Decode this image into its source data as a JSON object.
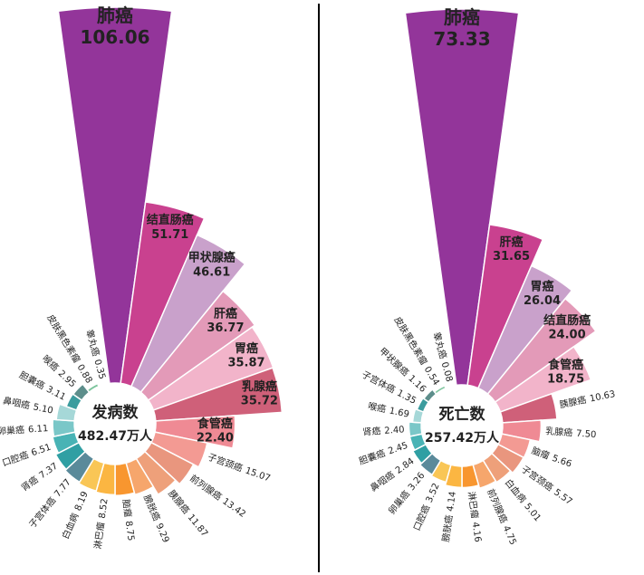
{
  "chart_data": [
    {
      "type": "rose",
      "center_label": "发病数",
      "center_value": "482.47万人",
      "categories": [
        "肺癌",
        "结直肠癌",
        "甲状腺癌",
        "肝癌",
        "胃癌",
        "乳腺癌",
        "食管癌",
        "子宫颈癌",
        "前列腺癌",
        "胰腺癌",
        "膀胱癌",
        "脑瘤",
        "淋巴瘤",
        "白血病",
        "子宫体癌",
        "肾癌",
        "口腔癌",
        "卵巢癌",
        "鼻咽癌",
        "胆囊癌",
        "喉癌",
        "皮肤黑色素瘤",
        "睾丸癌"
      ],
      "values": [
        106.06,
        51.71,
        46.61,
        36.77,
        35.87,
        35.72,
        22.4,
        15.07,
        13.42,
        11.87,
        9.29,
        8.75,
        8.52,
        8.19,
        7.77,
        7.37,
        6.51,
        6.11,
        5.1,
        3.11,
        2.95,
        0.88,
        0.35
      ],
      "value_labels": [
        "106.06",
        "51.71",
        "46.61",
        "36.77",
        "35.87",
        "35.72",
        "22.40",
        "15.07",
        "13.42",
        "11.87",
        "9.29",
        "8.75",
        "8.52",
        "8.19",
        "7.77",
        "7.37",
        "6.51",
        "6.11",
        "5.10",
        "3.11",
        "2.95",
        "0.88",
        "0.35"
      ],
      "colors": [
        "#93359a",
        "#c9418f",
        "#c9a1cb",
        "#e39ab8",
        "#f2b4ca",
        "#cf6079",
        "#ef8a94",
        "#f39a93",
        "#e9967e",
        "#eea07a",
        "#f6a66c",
        "#f8962f",
        "#fbb642",
        "#f9c656",
        "#5a8a9a",
        "#2f9fa3",
        "#48b3b5",
        "#7ac7c8",
        "#a6d8d8",
        "#3b9c9e",
        "#5d8e8b",
        "#7cc49c",
        "#49c06a"
      ]
    },
    {
      "type": "rose",
      "center_label": "死亡数",
      "center_value": "257.42万人",
      "categories": [
        "肺癌",
        "肝癌",
        "胃癌",
        "结直肠癌",
        "食管癌",
        "胰腺癌",
        "乳腺癌",
        "脑瘤",
        "子宫颈癌",
        "白血病",
        "前列腺癌",
        "淋巴瘤",
        "膀胱癌",
        "口腔癌",
        "卵巢癌",
        "鼻咽癌",
        "胆囊癌",
        "肾癌",
        "喉癌",
        "子宫体癌",
        "甲状腺癌",
        "皮肤黑色素瘤",
        "睾丸癌"
      ],
      "values": [
        73.33,
        31.65,
        26.04,
        24.0,
        18.75,
        10.63,
        7.5,
        5.66,
        5.57,
        5.01,
        4.75,
        4.16,
        4.14,
        3.52,
        3.26,
        2.84,
        2.45,
        2.4,
        1.69,
        1.35,
        1.16,
        0.54,
        0.08
      ],
      "value_labels": [
        "73.33",
        "31.65",
        "26.04",
        "24.00",
        "18.75",
        "10.63",
        "7.50",
        "5.66",
        "5.57",
        "5.01",
        "4.75",
        "4.16",
        "4.14",
        "3.52",
        "3.26",
        "2.84",
        "2.45",
        "2.40",
        "1.69",
        "1.35",
        "1.16",
        "0.54",
        "0.08"
      ],
      "colors": [
        "#93359a",
        "#c9418f",
        "#c9a1cb",
        "#e39ab8",
        "#f2b4ca",
        "#cf6079",
        "#ef8a94",
        "#f39a93",
        "#e9967e",
        "#eea07a",
        "#f6a66c",
        "#f8962f",
        "#fbb642",
        "#f9c656",
        "#5a8a9a",
        "#2f9fa3",
        "#48b3b5",
        "#7ac7c8",
        "#a6d8d8",
        "#3b9c9e",
        "#5d8e8b",
        "#7cc49c",
        "#49c06a"
      ]
    }
  ]
}
